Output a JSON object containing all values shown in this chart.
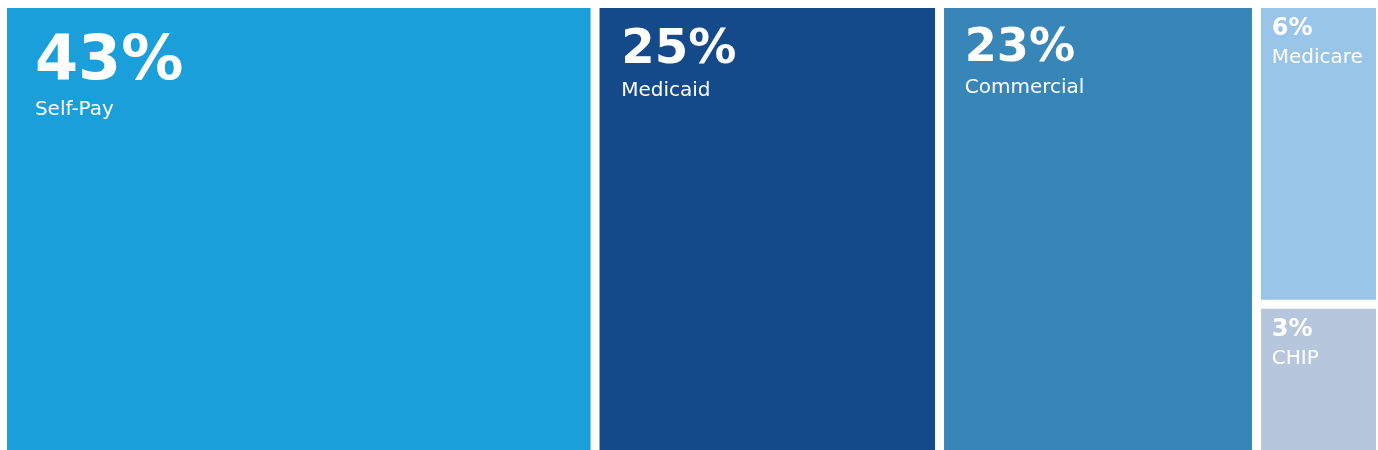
{
  "chart_data": {
    "type": "other",
    "categories": [
      "Self-Pay",
      "Medicaid",
      "Commercial",
      "Medicare",
      "CHIP"
    ],
    "values": [
      43,
      25,
      23,
      6,
      3
    ],
    "value_labels": [
      "43%",
      "25%",
      "23%",
      "6%",
      "3%"
    ],
    "colors": [
      "#1a9fdb",
      "#144a89",
      "#3886b7",
      "#98c5e8",
      "#b6c6dc"
    ]
  }
}
